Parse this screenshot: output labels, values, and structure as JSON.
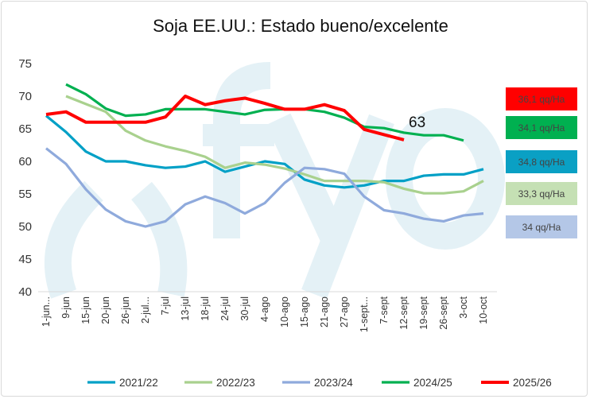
{
  "chart_data": {
    "type": "line",
    "title": "Soja EE.UU.: Estado bueno/excelente",
    "xlabel": "",
    "ylabel": "",
    "ylim": [
      40,
      75
    ],
    "yticks": [
      40,
      45,
      50,
      55,
      60,
      65,
      70,
      75
    ],
    "grid": false,
    "legend_position": "bottom",
    "categories": [
      "1-jun...",
      "9-jun",
      "15-jun",
      "20-jun",
      "26-jun",
      "2-jul...",
      "7-jul",
      "13-jul",
      "18-jul",
      "24-jul",
      "30-jul",
      "4-ago",
      "10-ago",
      "15-ago",
      "21-ago",
      "27-ago",
      "1-sept...",
      "7-sept",
      "12-sept",
      "19-sept",
      "26-sept",
      "3-oct",
      "10-oct"
    ],
    "series": [
      {
        "name": "2021/22",
        "color": "#00a0c6",
        "values": [
          67,
          64.5,
          61.5,
          60,
          60,
          59.4,
          59,
          59.2,
          60,
          58.4,
          59.2,
          60,
          59.6,
          57.2,
          56.3,
          56,
          56.3,
          57,
          57,
          57.8,
          58,
          58,
          58.8
        ]
      },
      {
        "name": "2022/23",
        "color": "#a9d18e",
        "values": [
          null,
          70,
          68.8,
          67.6,
          64.7,
          63.2,
          62.3,
          61.6,
          60.7,
          59,
          59.8,
          59.5,
          58.9,
          58,
          57,
          57,
          57,
          56.8,
          55.8,
          55.1,
          55.1,
          55.4,
          57
        ]
      },
      {
        "name": "2023/24",
        "color": "#8faadc",
        "values": [
          62,
          59.6,
          55.7,
          52.6,
          50.8,
          50,
          50.8,
          53.4,
          54.6,
          53.6,
          52,
          53.6,
          56.7,
          59,
          58.8,
          58.1,
          54.6,
          52.5,
          52,
          51.2,
          50.8,
          51.7,
          52
        ]
      },
      {
        "name": "2024/25",
        "color": "#00b050",
        "values": [
          null,
          71.8,
          70.3,
          68.1,
          67,
          67.2,
          68,
          68,
          68,
          67.6,
          67.2,
          67.9,
          68,
          68,
          67.6,
          66.7,
          65.3,
          65.1,
          64.4,
          64,
          64,
          63.2,
          null
        ]
      },
      {
        "name": "2025/26",
        "color": "#ff0000",
        "values": [
          67.2,
          67.6,
          66,
          66,
          66,
          66,
          66.8,
          70,
          68.7,
          69.3,
          69.7,
          68.9,
          68,
          68,
          68.7,
          67.8,
          64.9,
          64.1,
          63.3,
          null,
          null,
          null,
          null
        ]
      }
    ],
    "annotations": [
      {
        "text": "63",
        "series": "2025/26",
        "category": "12-sept"
      }
    ],
    "yield_boxes": [
      {
        "text": "36,1 qq/Ha",
        "series": "2025/26",
        "color": "#ff0000"
      },
      {
        "text": "34,1 qq/Ha",
        "series": "2024/25",
        "color": "#00b050"
      },
      {
        "text": "34,8 qq/Ha",
        "series": "2021/22",
        "color": "#0aa0c4"
      },
      {
        "text": "33,3 qq/Ha",
        "series": "2022/23",
        "color": "#c5e0b4"
      },
      {
        "text": "34 qq/Ha",
        "series": "2023/24",
        "color": "#b4c7e7"
      }
    ],
    "watermark": "(fyo"
  }
}
